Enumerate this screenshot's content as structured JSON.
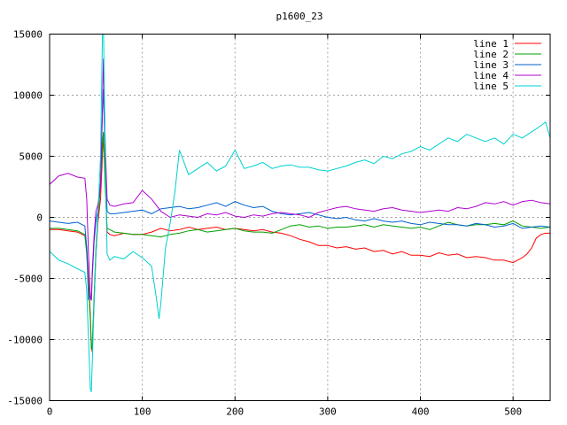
{
  "chart_data": {
    "type": "line",
    "title": "p1600_23",
    "xlim": [
      0,
      540
    ],
    "ylim": [
      -15000,
      15000
    ],
    "xticks": [
      0,
      100,
      200,
      300,
      400,
      500
    ],
    "yticks": [
      -15000,
      -10000,
      -5000,
      0,
      5000,
      10000,
      15000
    ],
    "grid": true,
    "legend_position": "top-right",
    "series": [
      {
        "name": "line 1",
        "color": "#ff0000",
        "x": [
          0,
          10,
          20,
          30,
          38,
          40,
          42,
          44,
          45,
          46,
          48,
          50,
          52,
          55,
          57,
          58,
          60,
          62,
          65,
          70,
          80,
          90,
          100,
          110,
          120,
          130,
          140,
          150,
          160,
          170,
          180,
          190,
          200,
          210,
          220,
          230,
          240,
          250,
          260,
          270,
          280,
          290,
          300,
          310,
          320,
          330,
          340,
          350,
          360,
          370,
          380,
          390,
          400,
          410,
          420,
          430,
          440,
          450,
          460,
          470,
          480,
          490,
          500,
          505,
          510,
          515,
          520,
          525,
          530,
          535,
          540
        ],
        "y": [
          -1000,
          -1000,
          -1100,
          -1200,
          -1500,
          -2500,
          -5000,
          -8000,
          -10500,
          -11000,
          -7000,
          -3000,
          -500,
          1500,
          5000,
          6800,
          3000,
          -1200,
          -1400,
          -1500,
          -1300,
          -1400,
          -1400,
          -1200,
          -900,
          -1100,
          -1000,
          -800,
          -1000,
          -900,
          -800,
          -1000,
          -900,
          -1000,
          -1100,
          -1000,
          -1200,
          -1300,
          -1500,
          -1800,
          -2000,
          -2300,
          -2300,
          -2500,
          -2400,
          -2600,
          -2500,
          -2800,
          -2700,
          -3000,
          -2800,
          -3100,
          -3100,
          -3200,
          -2900,
          -3100,
          -3000,
          -3300,
          -3200,
          -3300,
          -3500,
          -3500,
          -3700,
          -3500,
          -3300,
          -3000,
          -2500,
          -1700,
          -1400,
          -1300,
          -1300
        ]
      },
      {
        "name": "line 2",
        "color": "#00a000",
        "x": [
          0,
          10,
          20,
          30,
          38,
          40,
          42,
          44,
          45,
          46,
          48,
          50,
          52,
          55,
          57,
          58,
          60,
          62,
          65,
          70,
          80,
          90,
          100,
          110,
          120,
          130,
          140,
          150,
          160,
          170,
          180,
          190,
          200,
          210,
          220,
          230,
          240,
          250,
          260,
          270,
          280,
          290,
          300,
          310,
          320,
          330,
          340,
          350,
          360,
          370,
          380,
          390,
          400,
          410,
          420,
          430,
          440,
          450,
          460,
          470,
          480,
          490,
          500,
          510,
          520,
          530,
          540
        ],
        "y": [
          -900,
          -900,
          -1000,
          -1100,
          -1400,
          -3000,
          -5500,
          -8500,
          -10800,
          -10500,
          -6500,
          -2500,
          0,
          2500,
          6000,
          7000,
          2500,
          -900,
          -1000,
          -1200,
          -1300,
          -1400,
          -1400,
          -1500,
          -1600,
          -1400,
          -1300,
          -1100,
          -1000,
          -1200,
          -1100,
          -1000,
          -900,
          -1100,
          -1200,
          -1200,
          -1300,
          -1000,
          -700,
          -600,
          -800,
          -700,
          -900,
          -800,
          -800,
          -700,
          -600,
          -800,
          -600,
          -700,
          -800,
          -900,
          -800,
          -1000,
          -700,
          -400,
          -600,
          -700,
          -600,
          -600,
          -500,
          -600,
          -300,
          -700,
          -800,
          -900,
          -800
        ]
      },
      {
        "name": "line 3",
        "color": "#0060d0",
        "x": [
          0,
          10,
          20,
          30,
          38,
          40,
          42,
          44,
          45,
          46,
          48,
          50,
          52,
          55,
          57,
          58,
          60,
          62,
          65,
          70,
          80,
          90,
          100,
          110,
          120,
          130,
          140,
          150,
          160,
          170,
          180,
          190,
          200,
          210,
          220,
          230,
          240,
          250,
          260,
          270,
          280,
          290,
          300,
          310,
          320,
          330,
          340,
          350,
          360,
          370,
          380,
          390,
          400,
          410,
          420,
          430,
          440,
          450,
          460,
          470,
          480,
          490,
          500,
          510,
          520,
          530,
          540
        ],
        "y": [
          -300,
          -400,
          -500,
          -400,
          -700,
          -2500,
          -6700,
          -6500,
          -6800,
          -5000,
          -2000,
          -300,
          500,
          3000,
          8500,
          10500,
          5000,
          500,
          300,
          300,
          400,
          500,
          600,
          300,
          700,
          800,
          900,
          700,
          800,
          1000,
          1200,
          900,
          1300,
          1000,
          800,
          900,
          500,
          300,
          200,
          300,
          400,
          200,
          0,
          -100,
          0,
          -200,
          -300,
          -100,
          -300,
          -400,
          -300,
          -500,
          -600,
          -400,
          -500,
          -600,
          -600,
          -700,
          -500,
          -600,
          -800,
          -700,
          -500,
          -900,
          -800,
          -700,
          -800
        ]
      },
      {
        "name": "line 4",
        "color": "#b000d0",
        "x": [
          0,
          10,
          20,
          30,
          38,
          40,
          42,
          44,
          45,
          46,
          48,
          50,
          52,
          55,
          57,
          58,
          60,
          62,
          65,
          70,
          80,
          90,
          100,
          110,
          120,
          130,
          140,
          150,
          160,
          170,
          180,
          190,
          200,
          210,
          220,
          230,
          240,
          250,
          260,
          270,
          280,
          290,
          300,
          310,
          320,
          330,
          340,
          350,
          360,
          370,
          380,
          390,
          400,
          410,
          420,
          430,
          440,
          450,
          460,
          470,
          480,
          490,
          500,
          510,
          520,
          530,
          540
        ],
        "y": [
          2700,
          3400,
          3600,
          3300,
          3200,
          1500,
          -3000,
          -6500,
          -6800,
          -4500,
          -1500,
          500,
          1000,
          2500,
          9000,
          13000,
          6000,
          1500,
          1000,
          900,
          1100,
          1200,
          2200,
          1500,
          500,
          0,
          200,
          100,
          0,
          300,
          200,
          400,
          100,
          0,
          200,
          100,
          300,
          400,
          300,
          200,
          0,
          400,
          600,
          800,
          900,
          700,
          600,
          500,
          700,
          800,
          600,
          500,
          400,
          500,
          600,
          500,
          800,
          700,
          900,
          1200,
          1100,
          1300,
          1000,
          1300,
          1400,
          1200,
          1100
        ]
      },
      {
        "name": "line 5",
        "color": "#00d0d0",
        "x": [
          0,
          10,
          20,
          30,
          38,
          40,
          42,
          44,
          45,
          46,
          48,
          50,
          52,
          55,
          57,
          58,
          60,
          62,
          65,
          70,
          80,
          90,
          100,
          110,
          115,
          118,
          120,
          125,
          130,
          135,
          140,
          150,
          160,
          170,
          180,
          190,
          200,
          210,
          220,
          230,
          240,
          250,
          260,
          270,
          280,
          290,
          300,
          310,
          320,
          330,
          340,
          350,
          360,
          370,
          380,
          390,
          400,
          410,
          420,
          430,
          440,
          450,
          460,
          470,
          480,
          490,
          500,
          510,
          520,
          530,
          535,
          540
        ],
        "y": [
          -2800,
          -3500,
          -3800,
          -4200,
          -4500,
          -6000,
          -10000,
          -14000,
          -14300,
          -12000,
          -7000,
          -3000,
          0,
          5000,
          15000,
          16000,
          5000,
          -3000,
          -3500,
          -3200,
          -3400,
          -2800,
          -3300,
          -4000,
          -6500,
          -8300,
          -7000,
          -2500,
          -500,
          2000,
          5500,
          3500,
          4000,
          4500,
          3800,
          4200,
          5500,
          4000,
          4200,
          4500,
          4000,
          4200,
          4300,
          4100,
          4100,
          3900,
          3800,
          4000,
          4200,
          4500,
          4700,
          4400,
          5000,
          4800,
          5200,
          5400,
          5800,
          5500,
          6000,
          6500,
          6200,
          6800,
          6500,
          6200,
          6500,
          6000,
          6800,
          6500,
          7000,
          7500,
          7800,
          6500
        ]
      }
    ]
  }
}
